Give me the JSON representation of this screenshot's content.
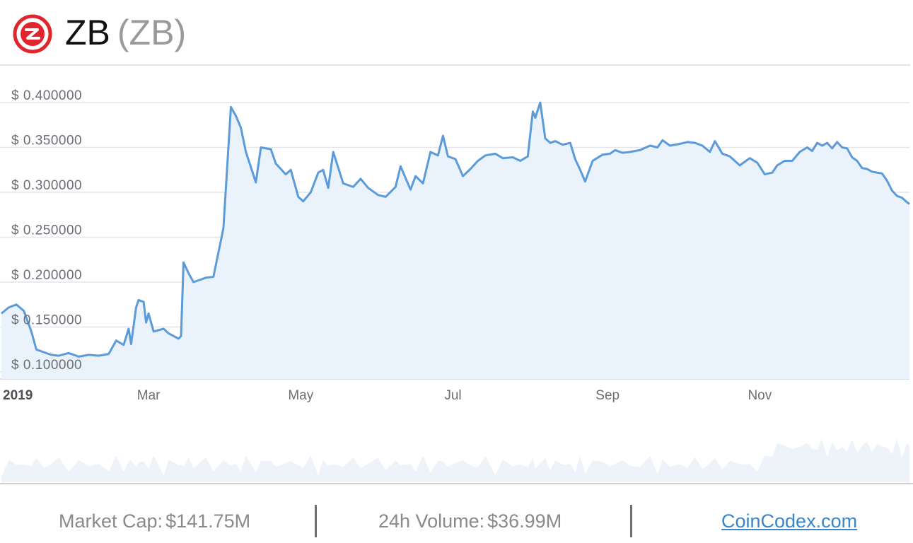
{
  "header": {
    "name": "ZB",
    "symbol": "(ZB)"
  },
  "footer": {
    "market_cap_label": "Market Cap:",
    "market_cap_value": "$141.75M",
    "volume_label": "24h Volume:",
    "volume_value": "$36.99M",
    "link_text": "CoinCodex.com"
  },
  "colors": {
    "line": "#5b9bd9",
    "area_fill": "#eaf2fb",
    "volume_fill": "#eef3f9",
    "brand_red": "#e0262c",
    "grid": "#e2e6ea",
    "label": "#6b6f75"
  },
  "chart_data": {
    "type": "line",
    "title": "",
    "xlabel": "",
    "ylabel": "",
    "ylim": [
      0.09,
      0.43
    ],
    "y_ticks": [
      "$ 0.100000",
      "$ 0.150000",
      "$ 0.200000",
      "$ 0.250000",
      "$ 0.300000",
      "$ 0.350000",
      "$ 0.400000"
    ],
    "y_tick_values": [
      0.1,
      0.15,
      0.2,
      0.25,
      0.3,
      0.35,
      0.4
    ],
    "x_ticks": [
      "2019",
      "Mar",
      "May",
      "Jul",
      "Sep",
      "Nov"
    ],
    "x_tick_dates": [
      "2019-01-01",
      "2019-03-01",
      "2019-05-01",
      "2019-07-01",
      "2019-09-01",
      "2019-11-01"
    ],
    "x_start": "2019-01-01",
    "x_end": "2019-12-31",
    "grid": true,
    "series": [
      {
        "points": [
          [
            "2019-01-01",
            0.165
          ],
          [
            "2019-01-04",
            0.172
          ],
          [
            "2019-01-07",
            0.175
          ],
          [
            "2019-01-10",
            0.168
          ],
          [
            "2019-01-13",
            0.145
          ],
          [
            "2019-01-15",
            0.125
          ],
          [
            "2019-01-18",
            0.122
          ],
          [
            "2019-01-21",
            0.119
          ],
          [
            "2019-01-24",
            0.118
          ],
          [
            "2019-01-28",
            0.121
          ],
          [
            "2019-02-01",
            0.117
          ],
          [
            "2019-02-05",
            0.119
          ],
          [
            "2019-02-09",
            0.118
          ],
          [
            "2019-02-13",
            0.12
          ],
          [
            "2019-02-16",
            0.135
          ],
          [
            "2019-02-19",
            0.13
          ],
          [
            "2019-02-21",
            0.148
          ],
          [
            "2019-02-22",
            0.131
          ],
          [
            "2019-02-24",
            0.172
          ],
          [
            "2019-02-25",
            0.18
          ],
          [
            "2019-02-27",
            0.178
          ],
          [
            "2019-02-28",
            0.155
          ],
          [
            "2019-03-01",
            0.165
          ],
          [
            "2019-03-03",
            0.145
          ],
          [
            "2019-03-07",
            0.148
          ],
          [
            "2019-03-09",
            0.143
          ],
          [
            "2019-03-13",
            0.137
          ],
          [
            "2019-03-14",
            0.14
          ],
          [
            "2019-03-15",
            0.222
          ],
          [
            "2019-03-17",
            0.21
          ],
          [
            "2019-03-19",
            0.2
          ],
          [
            "2019-03-21",
            0.202
          ],
          [
            "2019-03-24",
            0.205
          ],
          [
            "2019-03-27",
            0.206
          ],
          [
            "2019-03-31",
            0.26
          ],
          [
            "2019-04-03",
            0.395
          ],
          [
            "2019-04-05",
            0.385
          ],
          [
            "2019-04-07",
            0.372
          ],
          [
            "2019-04-09",
            0.345
          ],
          [
            "2019-04-13",
            0.311
          ],
          [
            "2019-04-15",
            0.35
          ],
          [
            "2019-04-19",
            0.348
          ],
          [
            "2019-04-21",
            0.332
          ],
          [
            "2019-04-25",
            0.32
          ],
          [
            "2019-04-27",
            0.325
          ],
          [
            "2019-04-30",
            0.295
          ],
          [
            "2019-05-02",
            0.29
          ],
          [
            "2019-05-05",
            0.3
          ],
          [
            "2019-05-08",
            0.322
          ],
          [
            "2019-05-10",
            0.325
          ],
          [
            "2019-05-12",
            0.305
          ],
          [
            "2019-05-14",
            0.345
          ],
          [
            "2019-05-18",
            0.31
          ],
          [
            "2019-05-22",
            0.306
          ],
          [
            "2019-05-25",
            0.315
          ],
          [
            "2019-05-28",
            0.305
          ],
          [
            "2019-06-01",
            0.297
          ],
          [
            "2019-06-04",
            0.295
          ],
          [
            "2019-06-08",
            0.306
          ],
          [
            "2019-06-10",
            0.329
          ],
          [
            "2019-06-14",
            0.303
          ],
          [
            "2019-06-16",
            0.318
          ],
          [
            "2019-06-19",
            0.31
          ],
          [
            "2019-06-22",
            0.345
          ],
          [
            "2019-06-25",
            0.341
          ],
          [
            "2019-06-27",
            0.363
          ],
          [
            "2019-06-29",
            0.34
          ],
          [
            "2019-07-02",
            0.337
          ],
          [
            "2019-07-05",
            0.318
          ],
          [
            "2019-07-08",
            0.326
          ],
          [
            "2019-07-11",
            0.335
          ],
          [
            "2019-07-14",
            0.341
          ],
          [
            "2019-07-18",
            0.343
          ],
          [
            "2019-07-21",
            0.338
          ],
          [
            "2019-07-25",
            0.339
          ],
          [
            "2019-07-28",
            0.335
          ],
          [
            "2019-07-31",
            0.34
          ],
          [
            "2019-08-02",
            0.39
          ],
          [
            "2019-08-03",
            0.383
          ],
          [
            "2019-08-05",
            0.4
          ],
          [
            "2019-08-07",
            0.36
          ],
          [
            "2019-08-09",
            0.355
          ],
          [
            "2019-08-11",
            0.357
          ],
          [
            "2019-08-14",
            0.353
          ],
          [
            "2019-08-17",
            0.355
          ],
          [
            "2019-08-19",
            0.337
          ],
          [
            "2019-08-21",
            0.325
          ],
          [
            "2019-08-23",
            0.312
          ],
          [
            "2019-08-26",
            0.335
          ],
          [
            "2019-08-30",
            0.342
          ],
          [
            "2019-09-02",
            0.343
          ],
          [
            "2019-09-04",
            0.347
          ],
          [
            "2019-09-07",
            0.344
          ],
          [
            "2019-09-10",
            0.345
          ],
          [
            "2019-09-14",
            0.347
          ],
          [
            "2019-09-18",
            0.352
          ],
          [
            "2019-09-21",
            0.35
          ],
          [
            "2019-09-23",
            0.358
          ],
          [
            "2019-09-26",
            0.352
          ],
          [
            "2019-09-30",
            0.354
          ],
          [
            "2019-10-03",
            0.356
          ],
          [
            "2019-10-06",
            0.355
          ],
          [
            "2019-10-09",
            0.352
          ],
          [
            "2019-10-12",
            0.345
          ],
          [
            "2019-10-14",
            0.357
          ],
          [
            "2019-10-17",
            0.343
          ],
          [
            "2019-10-20",
            0.34
          ],
          [
            "2019-10-24",
            0.33
          ],
          [
            "2019-10-28",
            0.338
          ],
          [
            "2019-10-31",
            0.333
          ],
          [
            "2019-11-03",
            0.32
          ],
          [
            "2019-11-06",
            0.322
          ],
          [
            "2019-11-08",
            0.33
          ],
          [
            "2019-11-11",
            0.335
          ],
          [
            "2019-11-14",
            0.335
          ],
          [
            "2019-11-17",
            0.345
          ],
          [
            "2019-11-20",
            0.35
          ],
          [
            "2019-11-22",
            0.346
          ],
          [
            "2019-11-24",
            0.355
          ],
          [
            "2019-11-26",
            0.352
          ],
          [
            "2019-11-28",
            0.355
          ],
          [
            "2019-11-30",
            0.349
          ],
          [
            "2019-12-02",
            0.356
          ],
          [
            "2019-12-04",
            0.35
          ],
          [
            "2019-12-06",
            0.349
          ],
          [
            "2019-12-08",
            0.339
          ],
          [
            "2019-12-10",
            0.335
          ],
          [
            "2019-12-12",
            0.327
          ],
          [
            "2019-12-14",
            0.326
          ],
          [
            "2019-12-16",
            0.323
          ],
          [
            "2019-12-18",
            0.322
          ],
          [
            "2019-12-20",
            0.321
          ],
          [
            "2019-12-22",
            0.313
          ],
          [
            "2019-12-24",
            0.302
          ],
          [
            "2019-12-26",
            0.296
          ],
          [
            "2019-12-28",
            0.294
          ],
          [
            "2019-12-30",
            0.289
          ],
          [
            "2019-12-31",
            0.287
          ]
        ]
      }
    ]
  }
}
